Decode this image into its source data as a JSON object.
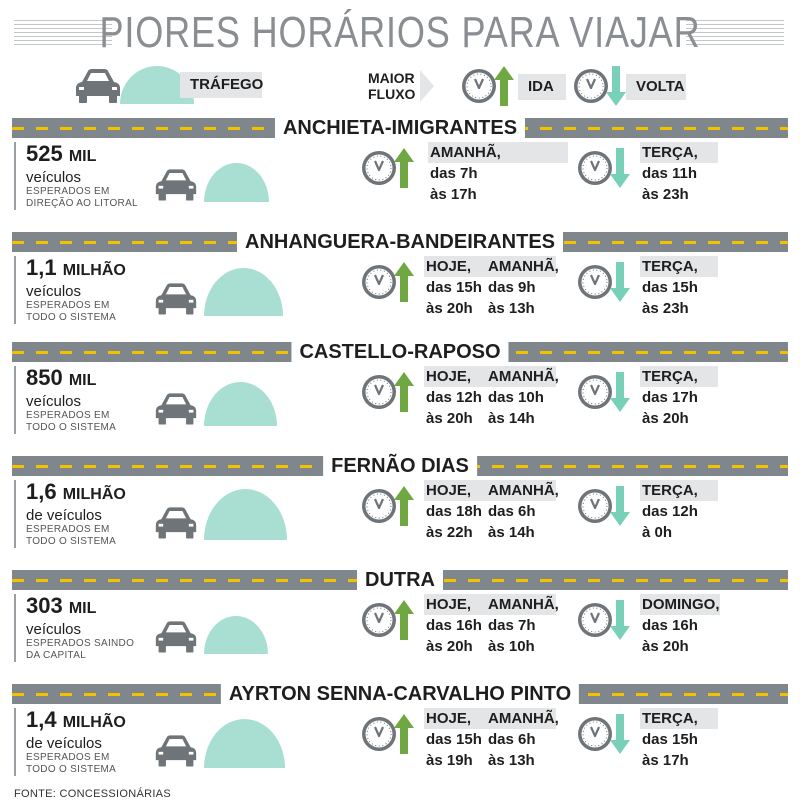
{
  "title": "PIORES HORÁRIOS PARA VIAJAR",
  "legend": {
    "traffic": "TRÁFEGO",
    "flow": [
      "MAIOR",
      "FLUXO"
    ],
    "ida": "IDA",
    "volta": "VOLTA"
  },
  "colors": {
    "road": "#7f878d",
    "dash": "#f2c200",
    "mound": "#a9dfd3",
    "ida_arrow": "#6fa843",
    "volta_arrow": "#79d0b8",
    "clock": "#6f7478",
    "label_bg": "#e3e5e7"
  },
  "icons": {
    "car": "car-icon",
    "traffic": "traffic-mound-icon",
    "clock": "clock-icon",
    "ida": "up-arrow-icon",
    "volta": "down-arrow-icon"
  },
  "roads": [
    {
      "name": "ANCHIETA-IMIGRANTES",
      "volume": "525",
      "unit": "MIL",
      "vehicles": "veículos",
      "note": [
        "ESPERADOS EM",
        "DIREÇÃO AO LITORAL"
      ],
      "traffic_level": 0.52,
      "ida": [
        {
          "day": "AMANHÃ,",
          "from": "das 7h",
          "to": "às 17h"
        }
      ],
      "volta": {
        "day": "TERÇA,",
        "from": "das 11h",
        "to": "às 23h"
      }
    },
    {
      "name": "ANHANGUERA-BANDEIRANTES",
      "volume": "1,1",
      "unit": "MILHÃO",
      "vehicles": "veículos",
      "note": [
        "ESPERADOS EM",
        "TODO O SISTEMA"
      ],
      "traffic_level": 0.82,
      "ida": [
        {
          "day": "HOJE,",
          "from": "das 15h",
          "to": "às 20h"
        },
        {
          "day": "AMANHÃ,",
          "from": "das 9h",
          "to": "às 13h"
        }
      ],
      "volta": {
        "day": "TERÇA,",
        "from": "das 15h",
        "to": "às 23h"
      }
    },
    {
      "name": "CASTELLO-RAPOSO",
      "volume": "850",
      "unit": "MIL",
      "vehicles": "veículos",
      "note": [
        "ESPERADOS EM",
        "TODO O SISTEMA"
      ],
      "traffic_level": 0.68,
      "ida": [
        {
          "day": "HOJE,",
          "from": "das 12h",
          "to": "às 20h"
        },
        {
          "day": "AMANHÃ,",
          "from": "das 10h",
          "to": "às 14h"
        }
      ],
      "volta": {
        "day": "TERÇA,",
        "from": "das 17h",
        "to": "às 20h"
      }
    },
    {
      "name": "FERNÃO DIAS",
      "volume": "1,6",
      "unit": "MILHÃO",
      "vehicles": "de veículos",
      "note": [
        "ESPERADOS EM",
        "TODO O SISTEMA"
      ],
      "traffic_level": 0.9,
      "ida": [
        {
          "day": "HOJE,",
          "from": "das 18h",
          "to": "às 22h"
        },
        {
          "day": "AMANHÃ,",
          "from": "das 6h",
          "to": "às 14h"
        }
      ],
      "volta": {
        "day": "TERÇA,",
        "from": "das 12h",
        "to": "à 0h"
      }
    },
    {
      "name": "DUTRA",
      "volume": "303",
      "unit": "MIL",
      "vehicles": "veículos",
      "note": [
        "ESPERADOS SAINDO",
        "DA CAPITAL"
      ],
      "traffic_level": 0.5,
      "ida": [
        {
          "day": "HOJE,",
          "from": "das 16h",
          "to": "às 20h"
        },
        {
          "day": "AMANHÃ,",
          "from": "das 7h",
          "to": "às 10h"
        }
      ],
      "volta": {
        "day": "DOMINGO,",
        "from": "das 16h",
        "to": "às 20h"
      }
    },
    {
      "name": "AYRTON SENNA-CARVALHO PINTO",
      "volume": "1,4",
      "unit": "MILHÃO",
      "vehicles": "de veículos",
      "note": [
        "ESPERADOS EM",
        "TODO O SISTEMA"
      ],
      "traffic_level": 0.85,
      "ida": [
        {
          "day": "HOJE,",
          "from": "das 15h",
          "to": "às 19h"
        },
        {
          "day": "AMANHÃ,",
          "from": "das 6h",
          "to": "às 13h"
        }
      ],
      "volta": {
        "day": "TERÇA,",
        "from": "das 15h",
        "to": "às 17h"
      }
    }
  ],
  "source": "FONTE: CONCESSIONÁRIAS"
}
